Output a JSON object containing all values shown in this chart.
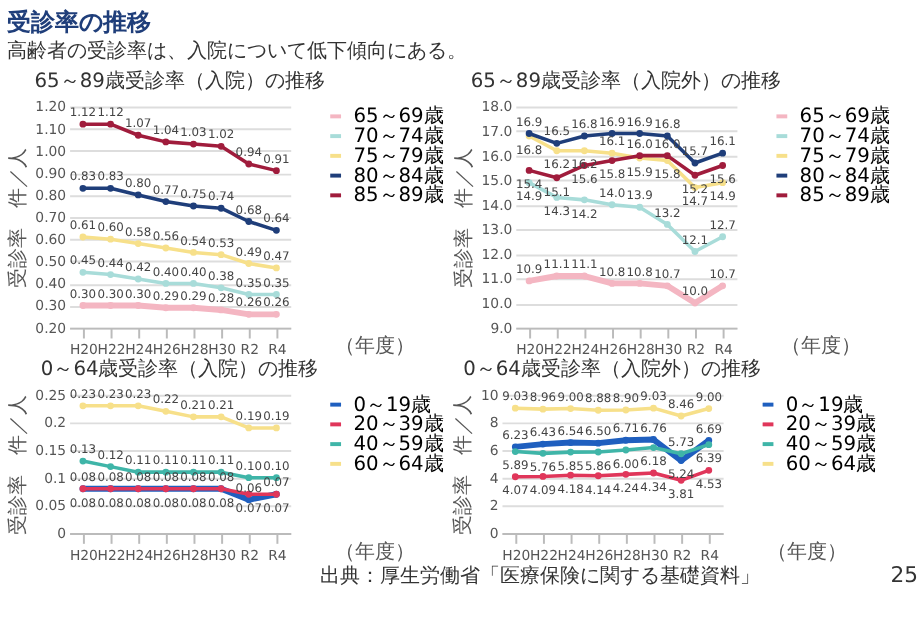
{
  "chart_data": [
    {
      "type": "line",
      "title": "65～89歳受診率（入院）の推移",
      "xlabel": "（年度）",
      "ylabel": "受診率　件／人",
      "annotations": [
        "受診率の推移",
        "高齢者の受診率は、入院について低下傾向にある。"
      ],
      "categories": [
        "H20",
        "H22",
        "H24",
        "H26",
        "H28",
        "H30",
        "R2",
        "R4"
      ],
      "ylim": [
        0.2,
        1.2
      ],
      "yticks": [
        {
          "value": 0.2,
          "label": "0.20"
        },
        {
          "value": 0.3,
          "label": "0.30"
        },
        {
          "value": 0.4,
          "label": "0.40"
        },
        {
          "value": 0.5,
          "label": "0.50"
        },
        {
          "value": 0.6,
          "label": "0.60"
        },
        {
          "value": 0.7,
          "label": "0.70"
        },
        {
          "value": 0.8,
          "label": "0.80"
        },
        {
          "value": 0.9,
          "label": "0.90"
        },
        {
          "value": 1.0,
          "label": "1.00"
        },
        {
          "value": 1.1,
          "label": "1.10"
        },
        {
          "value": 1.2,
          "label": "1.20"
        }
      ],
      "grid": "y",
      "legend": "right",
      "marker": "circle",
      "line_style": "solid",
      "series": [
        {
          "name": "65～69歳",
          "color": "#f4b6c2",
          "values": [
            0.3,
            0.3,
            0.3,
            0.29,
            0.29,
            0.28,
            0.26,
            0.26
          ],
          "value_labels": [
            "0.30",
            "0.30",
            "0.30",
            "0.29",
            "0.29",
            "0.28",
            "0.26",
            "0.26"
          ]
        },
        {
          "name": "70～74歳",
          "color": "#a8dcd9",
          "values": [
            0.45,
            0.44,
            0.42,
            0.4,
            0.4,
            0.38,
            0.35,
            0.35
          ],
          "value_labels": [
            "0.45",
            "0.44",
            "0.42",
            "0.40",
            "0.40",
            "0.38",
            "0.35",
            "0.35"
          ]
        },
        {
          "name": "75～79歳",
          "color": "#f7e08a",
          "values": [
            0.61,
            0.6,
            0.58,
            0.56,
            0.54,
            0.53,
            0.49,
            0.47
          ],
          "value_labels": [
            "0.61",
            "0.60",
            "0.58",
            "0.56",
            "0.54",
            "0.53",
            "0.49",
            "0.47"
          ]
        },
        {
          "name": "80～84歳",
          "color": "#1f3e7a",
          "values": [
            0.83,
            0.83,
            0.8,
            0.77,
            0.75,
            0.74,
            0.68,
            0.64
          ],
          "value_labels": [
            "0.83",
            "0.83",
            "0.80",
            "0.77",
            "0.75",
            "0.74",
            "0.68",
            "0.64"
          ]
        },
        {
          "name": "85～89歳",
          "color": "#a01c3c",
          "values": [
            1.12,
            1.12,
            1.07,
            1.04,
            1.03,
            1.02,
            0.94,
            0.91
          ],
          "value_labels": [
            "1.12",
            "1.12",
            "1.07",
            "1.04",
            "1.03",
            "1.02",
            "0.94",
            "0.91"
          ]
        }
      ]
    },
    {
      "type": "line",
      "title": "65～89歳受診率（入院外）の推移",
      "xlabel": "（年度）",
      "ylabel": "受診率　件／人",
      "categories": [
        "H20",
        "H22",
        "H24",
        "H26",
        "H28",
        "H30",
        "R2",
        "R4"
      ],
      "ylim": [
        9,
        18
      ],
      "yticks": [
        {
          "value": 9,
          "label": "9.0"
        },
        {
          "value": 10,
          "label": "10.0"
        },
        {
          "value": 11,
          "label": "11.0"
        },
        {
          "value": 12,
          "label": "12.0"
        },
        {
          "value": 13,
          "label": "13.0"
        },
        {
          "value": 14,
          "label": "14.0"
        },
        {
          "value": 15,
          "label": "15.0"
        },
        {
          "value": 16,
          "label": "16.0"
        },
        {
          "value": 17,
          "label": "17.0"
        },
        {
          "value": 18,
          "label": "18.0"
        }
      ],
      "grid": "y",
      "legend": "right",
      "marker": "circle",
      "line_style": "solid",
      "series": [
        {
          "name": "65～69歳",
          "color": "#f4b6c2",
          "values": [
            10.9,
            11.1,
            11.1,
            10.8,
            10.8,
            10.7,
            10.0,
            10.7
          ],
          "value_labels": [
            "10.9",
            "11.1",
            "11.1",
            "10.8",
            "10.8",
            "10.7",
            "10.0",
            "10.7"
          ]
        },
        {
          "name": "70～74歳",
          "color": "#a8dcd9",
          "values": [
            14.9,
            14.3,
            14.2,
            14.0,
            13.9,
            13.2,
            12.1,
            12.7
          ],
          "value_labels": [
            "14.9",
            "14.3",
            "14.2",
            "14.0",
            "13.9",
            "13.2",
            "12.1",
            "12.7"
          ]
        },
        {
          "name": "75～79歳",
          "color": "#f7e08a",
          "values": [
            16.8,
            16.2,
            16.2,
            16.1,
            15.9,
            15.8,
            14.7,
            14.9
          ],
          "value_labels": [
            "16.8",
            "16.2",
            "16.2",
            "16.1",
            "15.9",
            "15.8",
            "14.7",
            "14.9"
          ]
        },
        {
          "name": "80～84歳",
          "color": "#1f3e7a",
          "values": [
            16.9,
            16.5,
            16.8,
            16.9,
            16.9,
            16.8,
            15.7,
            16.1
          ],
          "value_labels": [
            "16.9",
            "16.5",
            "16.8",
            "16.9",
            "16.9",
            "16.8",
            "15.7",
            "16.1"
          ]
        },
        {
          "name": "85～89歳",
          "color": "#a01c3c",
          "values": [
            15.4,
            15.1,
            15.6,
            15.8,
            16.0,
            16.0,
            15.2,
            15.6
          ],
          "value_labels": [
            "15.4",
            "15.1",
            "15.6",
            "15.8",
            "16.0",
            "16.0",
            "15.2",
            "15.6"
          ]
        }
      ]
    },
    {
      "type": "line",
      "title": "0～64歳受診率（入院）の推移",
      "xlabel": "（年度）",
      "ylabel": "受診率　件／人",
      "categories": [
        "H20",
        "H22",
        "H24",
        "H26",
        "H28",
        "H30",
        "R2",
        "R4"
      ],
      "ylim": [
        0,
        0.25
      ],
      "yticks": [
        0,
        0.05,
        0.1,
        0.15,
        0.2,
        0.25
      ],
      "grid": "y",
      "legend": "right",
      "marker": "circle",
      "line_style": "solid",
      "series": [
        {
          "name": "0～19歳",
          "color": "#1f5fbf",
          "values": [
            0.08,
            0.08,
            0.08,
            0.08,
            0.08,
            0.08,
            0.06,
            0.07
          ],
          "value_labels": [
            "0.08",
            "0.08",
            "0.08",
            "0.08",
            "0.08",
            "0.08",
            "0.06",
            "0.07"
          ]
        },
        {
          "name": "20～39歳",
          "color": "#e0365a",
          "values": [
            0.08,
            0.08,
            0.08,
            0.08,
            0.08,
            0.08,
            0.07,
            0.07
          ],
          "value_labels": [
            "0.08",
            "0.08",
            "0.08",
            "0.08",
            "0.08",
            "0.08",
            "0.07",
            "0.07"
          ]
        },
        {
          "name": "40～59歳",
          "color": "#3fb5a8",
          "values": [
            0.13,
            0.12,
            0.11,
            0.11,
            0.11,
            0.11,
            0.1,
            0.1
          ],
          "value_labels": [
            "0.13",
            "0.12",
            "0.11",
            "0.11",
            "0.11",
            "0.11",
            "0.10",
            "0.10"
          ]
        },
        {
          "name": "60～64歳",
          "color": "#f7e08a",
          "values": [
            0.23,
            0.23,
            0.23,
            0.22,
            0.21,
            0.21,
            0.19,
            0.19
          ],
          "value_labels": [
            "0.23",
            "0.23",
            "0.23",
            "0.22",
            "0.21",
            "0.21",
            "0.19",
            "0.19"
          ]
        }
      ]
    },
    {
      "type": "line",
      "title": "0～64歳受診率（入院外）の推移",
      "xlabel": "（年度）",
      "ylabel": "受診率　件／人",
      "annotations": [
        "出典：厚生労働省「医療保険に関する基礎資料」",
        "25"
      ],
      "categories": [
        "H20",
        "H22",
        "H24",
        "H26",
        "H28",
        "H30",
        "R2",
        "R4"
      ],
      "ylim": [
        0,
        10
      ],
      "yticks": [
        0,
        2,
        4,
        6,
        8,
        10
      ],
      "grid": "y",
      "legend": "right",
      "marker": "circle",
      "line_style": "solid",
      "series": [
        {
          "name": "0～19歳",
          "color": "#1f5fbf",
          "values": [
            6.23,
            6.43,
            6.54,
            6.5,
            6.71,
            6.76,
            5.24,
            6.69
          ],
          "value_labels": [
            "6.23",
            "6.43",
            "6.54",
            "6.50",
            "6.71",
            "6.76",
            "5.24",
            "6.69"
          ]
        },
        {
          "name": "20～39歳",
          "color": "#e0365a",
          "values": [
            4.07,
            4.09,
            4.18,
            4.14,
            4.24,
            4.34,
            3.81,
            4.53
          ],
          "value_labels": [
            "4.07",
            "4.09",
            "4.18",
            "4.14",
            "4.24",
            "4.34",
            "3.81",
            "4.53"
          ]
        },
        {
          "name": "40～59歳",
          "color": "#3fb5a8",
          "values": [
            5.89,
            5.76,
            5.85,
            5.86,
            6.0,
            6.18,
            5.73,
            6.39
          ],
          "value_labels": [
            "5.89",
            "5.76",
            "5.85",
            "5.86",
            "6.00",
            "6.18",
            "5.73",
            "6.39"
          ]
        },
        {
          "name": "60～64歳",
          "color": "#f7e08a",
          "values": [
            9.03,
            8.96,
            9.0,
            8.88,
            8.9,
            9.03,
            8.46,
            9.0
          ],
          "value_labels": [
            "9.03",
            "8.96",
            "9.00",
            "8.88",
            "8.90",
            "9.03",
            "8.46",
            "9.00"
          ]
        }
      ]
    }
  ]
}
